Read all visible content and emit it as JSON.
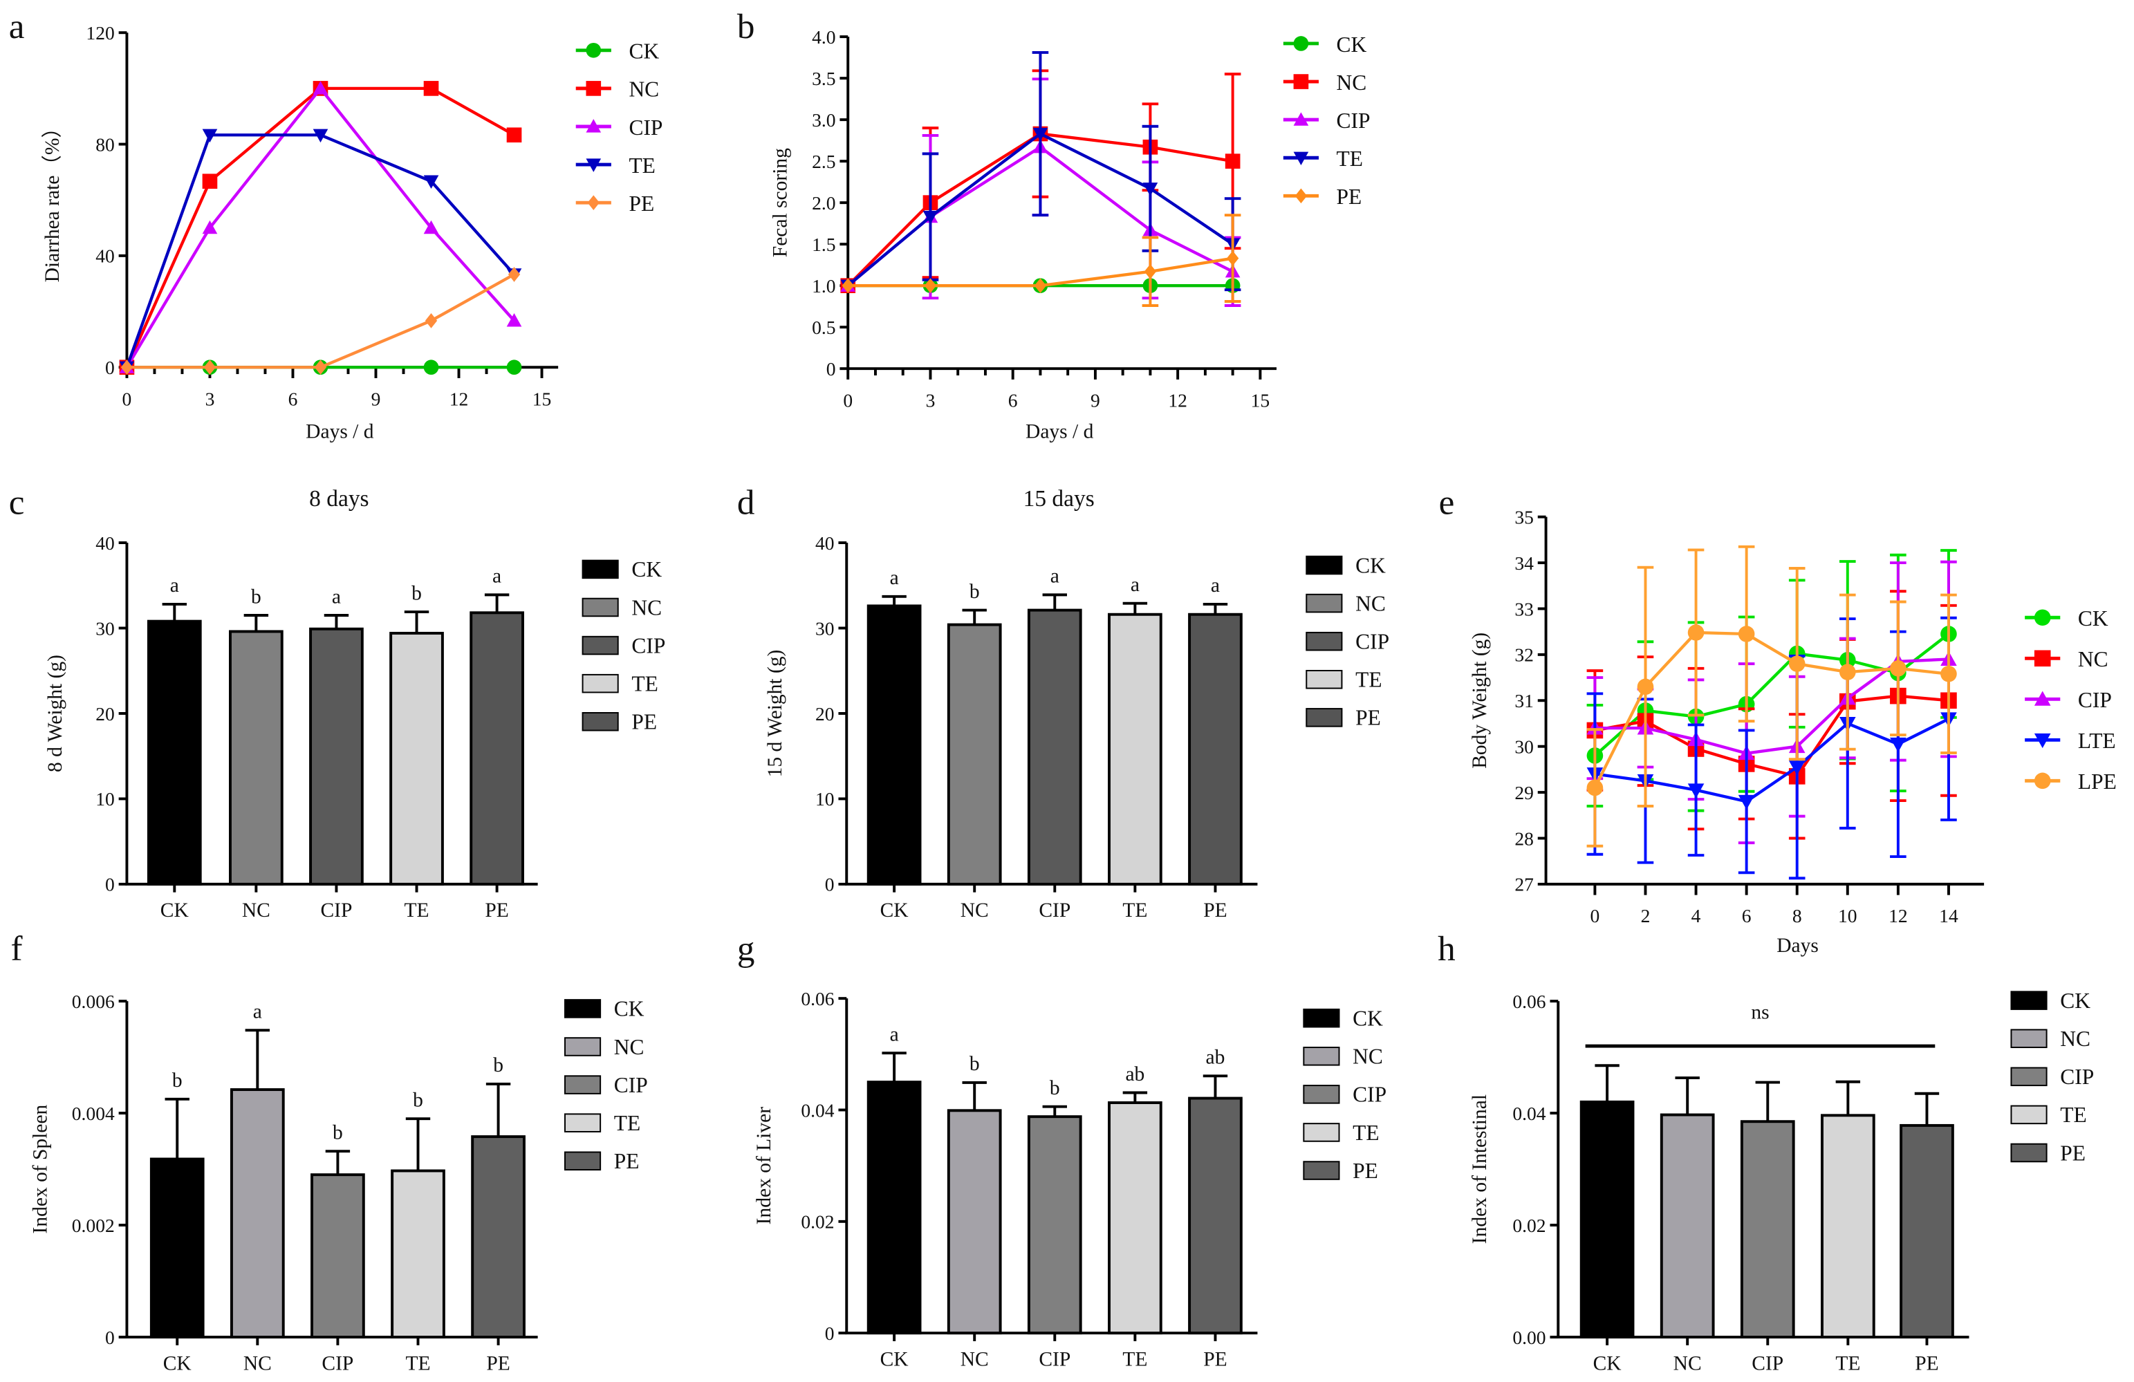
{
  "chart_data": [
    {
      "panel": "a",
      "type": "line",
      "title": "",
      "xlabel": "Days / d",
      "ylabel": "Diarrhea rate（%）",
      "xlim": [
        0,
        15
      ],
      "xticks": [
        0,
        3,
        6,
        9,
        12,
        15
      ],
      "ylim": [
        0,
        120
      ],
      "yticks": [
        0,
        40,
        80,
        120
      ],
      "x": [
        0,
        3,
        7,
        11,
        14
      ],
      "legend": "right",
      "series": [
        {
          "name": "CK",
          "color": "#00c000",
          "marker": "circle",
          "values": [
            0,
            0,
            0,
            0,
            0
          ]
        },
        {
          "name": "NC",
          "color": "#ff0000",
          "marker": "square",
          "values": [
            0,
            66.7,
            100,
            100,
            83.3
          ]
        },
        {
          "name": "CIP",
          "color": "#cc00ff",
          "marker": "triangle-up",
          "values": [
            0,
            50,
            100,
            50,
            16.7
          ]
        },
        {
          "name": "TE",
          "color": "#0000c0",
          "marker": "triangle-down",
          "values": [
            0,
            83.3,
            83.3,
            66.7,
            33.3
          ]
        },
        {
          "name": "PE",
          "color": "#ff8c3a",
          "marker": "diamond",
          "values": [
            0,
            0,
            0,
            16.7,
            33.3
          ]
        }
      ]
    },
    {
      "panel": "b",
      "type": "line",
      "title": "",
      "xlabel": "Days / d",
      "ylabel": "Fecal scoring",
      "xlim": [
        0,
        15
      ],
      "xticks": [
        0,
        3,
        6,
        9,
        12,
        15
      ],
      "ylim": [
        0,
        4
      ],
      "yticks": [
        0,
        0.5,
        1.0,
        1.5,
        2.0,
        2.5,
        3.0,
        3.5,
        4.0
      ],
      "ytick_labels": [
        "0",
        "0.5",
        "1.0",
        "1.5",
        "2.0",
        "2.5",
        "3.0",
        "3.5",
        "4.0"
      ],
      "x": [
        0,
        3,
        7,
        11,
        14
      ],
      "legend": "right",
      "series": [
        {
          "name": "CK",
          "color": "#00c000",
          "marker": "circle",
          "values": [
            1,
            1,
            1,
            1,
            1
          ],
          "err": [
            0,
            0,
            0,
            0,
            0
          ]
        },
        {
          "name": "NC",
          "color": "#ff0000",
          "marker": "square",
          "values": [
            1,
            2.0,
            2.83,
            2.67,
            2.5
          ],
          "err": [
            0,
            0.9,
            0.76,
            0.52,
            1.05
          ]
        },
        {
          "name": "CIP",
          "color": "#cc00ff",
          "marker": "triangle-up",
          "values": [
            1,
            1.83,
            2.67,
            1.67,
            1.17
          ],
          "err": [
            0,
            0.98,
            0.82,
            0.82,
            0.41
          ]
        },
        {
          "name": "TE",
          "color": "#0000c0",
          "marker": "triangle-down",
          "values": [
            1,
            1.83,
            2.83,
            2.17,
            1.5
          ],
          "err": [
            0,
            0.76,
            0.98,
            0.75,
            0.55
          ]
        },
        {
          "name": "PE",
          "color": "#ff8c1a",
          "marker": "diamond",
          "values": [
            1,
            1,
            1,
            1.17,
            1.33
          ],
          "err": [
            0,
            0,
            0,
            0.41,
            0.52
          ]
        }
      ]
    },
    {
      "panel": "c",
      "type": "bar",
      "title": "8 days",
      "xlabel": "",
      "ylabel": "8 d Weight (g)",
      "ylim": [
        0,
        40
      ],
      "yticks": [
        0,
        10,
        20,
        30,
        40
      ],
      "categories": [
        "CK",
        "NC",
        "CIP",
        "TE",
        "PE"
      ],
      "values": [
        30.8,
        29.6,
        29.9,
        29.4,
        31.8
      ],
      "err": [
        2.0,
        1.9,
        1.6,
        2.5,
        2.1
      ],
      "letters": [
        "a",
        "b",
        "a",
        "b",
        "a"
      ],
      "colors": [
        "#000000",
        "#808080",
        "#5a5a5a",
        "#d4d4d4",
        "#555555"
      ]
    },
    {
      "panel": "d",
      "type": "bar",
      "title": "15 days",
      "xlabel": "",
      "ylabel": "15 d Weight (g)",
      "ylim": [
        0,
        40
      ],
      "yticks": [
        0,
        10,
        20,
        30,
        40
      ],
      "categories": [
        "CK",
        "NC",
        "CIP",
        "TE",
        "PE"
      ],
      "values": [
        32.6,
        30.4,
        32.1,
        31.6,
        31.6
      ],
      "err": [
        1.1,
        1.7,
        1.8,
        1.3,
        1.2
      ],
      "letters": [
        "a",
        "b",
        "a",
        "a",
        "a"
      ],
      "colors": [
        "#000000",
        "#808080",
        "#5a5a5a",
        "#d4d4d4",
        "#555555"
      ]
    },
    {
      "panel": "e",
      "type": "line",
      "title": "",
      "xlabel": "Days",
      "ylabel": "Body Weight (g)",
      "xlim": [
        -2,
        15
      ],
      "xticks": [
        0,
        2,
        4,
        6,
        8,
        10,
        12,
        14
      ],
      "ylim": [
        27,
        35
      ],
      "yticks": [
        27,
        28,
        29,
        30,
        31,
        32,
        33,
        34,
        35
      ],
      "x": [
        0,
        2,
        4,
        6,
        8,
        10,
        12,
        14
      ],
      "legend": "right",
      "series": [
        {
          "name": "CK",
          "color": "#00e000",
          "marker": "circle",
          "values": [
            29.8,
            30.78,
            30.65,
            30.92,
            32.02,
            31.88,
            31.6,
            32.45
          ],
          "err": [
            1.1,
            1.5,
            2.05,
            1.9,
            1.6,
            2.15,
            2.57,
            1.82
          ]
        },
        {
          "name": "NC",
          "color": "#ff0000",
          "marker": "square",
          "values": [
            30.35,
            30.55,
            29.95,
            29.62,
            29.35,
            30.98,
            31.1,
            31.0
          ],
          "err": [
            1.3,
            1.4,
            1.75,
            1.2,
            1.35,
            1.35,
            2.28,
            2.07
          ]
        },
        {
          "name": "CIP",
          "color": "#cc00ff",
          "marker": "triangle-up",
          "values": [
            30.4,
            30.4,
            30.15,
            29.85,
            30.0,
            31.05,
            31.85,
            31.9
          ],
          "err": [
            1.1,
            0.85,
            1.3,
            1.95,
            1.52,
            1.3,
            2.15,
            2.12
          ]
        },
        {
          "name": "LTE",
          "color": "#0010ff",
          "marker": "triangle-down",
          "values": [
            29.4,
            29.25,
            29.05,
            28.8,
            29.55,
            30.5,
            30.05,
            30.6
          ],
          "err": [
            1.75,
            1.78,
            1.42,
            1.55,
            2.42,
            2.28,
            2.45,
            2.2
          ]
        },
        {
          "name": "LPE",
          "color": "#ffa030",
          "marker": "circle",
          "values": [
            29.1,
            31.3,
            32.48,
            32.45,
            31.8,
            31.62,
            31.7,
            31.58
          ],
          "err": [
            1.27,
            2.6,
            1.8,
            1.9,
            2.08,
            1.68,
            1.45,
            1.72
          ]
        }
      ]
    },
    {
      "panel": "f",
      "type": "bar",
      "title": "",
      "xlabel": "",
      "ylabel": "Index of Spleen",
      "ylim": [
        0,
        0.006
      ],
      "yticks": [
        0,
        0.002,
        0.004,
        0.006
      ],
      "ytick_labels": [
        "0",
        "0.002",
        "0.004",
        "0.006"
      ],
      "categories": [
        "CK",
        "NC",
        "CIP",
        "TE",
        "PE"
      ],
      "values": [
        0.00318,
        0.00442,
        0.0029,
        0.00297,
        0.00358
      ],
      "err": [
        0.00107,
        0.00106,
        0.00042,
        0.00093,
        0.00094
      ],
      "letters": [
        "b",
        "a",
        "b",
        "b",
        "b"
      ],
      "colors": [
        "#000000",
        "#a4a2a8",
        "#808080",
        "#d6d6d6",
        "#606060"
      ]
    },
    {
      "panel": "g",
      "type": "bar",
      "title": "",
      "xlabel": "",
      "ylabel": "Index of Liver",
      "ylim": [
        0,
        0.06
      ],
      "yticks": [
        0,
        0.02,
        0.04,
        0.06
      ],
      "ytick_labels": [
        "0",
        "0.02",
        "0.04",
        "0.06"
      ],
      "categories": [
        "CK",
        "NC",
        "CIP",
        "TE",
        "PE"
      ],
      "values": [
        0.045,
        0.0399,
        0.0388,
        0.0413,
        0.0421
      ],
      "err": [
        0.0052,
        0.005,
        0.0018,
        0.0018,
        0.004
      ],
      "letters": [
        "a",
        "b",
        "b",
        "ab",
        "ab"
      ],
      "colors": [
        "#000000",
        "#a4a2a8",
        "#808080",
        "#d6d6d6",
        "#606060"
      ]
    },
    {
      "panel": "h",
      "type": "bar",
      "title": "",
      "xlabel": "",
      "ylabel": "Index of Intestinal",
      "ylim": [
        0,
        0.06
      ],
      "yticks": [
        0,
        0.02,
        0.04,
        0.06
      ],
      "ytick_labels": [
        "0.00",
        "0.02",
        "0.04",
        "0.06"
      ],
      "categories": [
        "CK",
        "NC",
        "CIP",
        "TE",
        "PE"
      ],
      "values": [
        0.042,
        0.0397,
        0.0385,
        0.0396,
        0.0378
      ],
      "err": [
        0.0065,
        0.0066,
        0.007,
        0.006,
        0.0057
      ],
      "letters": [],
      "annotation": "ns",
      "colors": [
        "#000000",
        "#a4a2a8",
        "#808080",
        "#d6d6d6",
        "#606060"
      ]
    }
  ]
}
